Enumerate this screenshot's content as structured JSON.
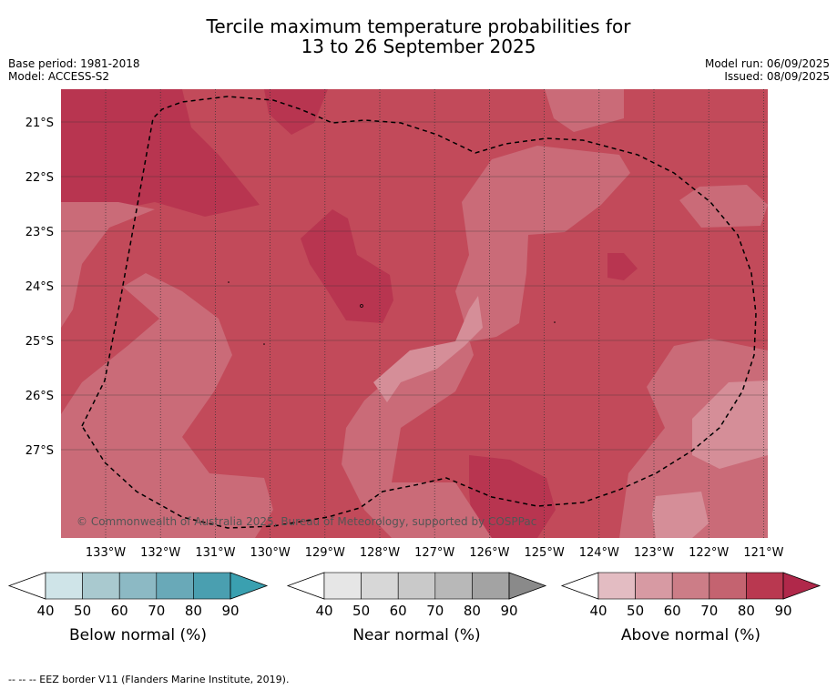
{
  "title": {
    "line1": "Tercile maximum temperature probabilities for",
    "line2": "13 to 26 September 2025"
  },
  "meta": {
    "base_period": "Base period: 1981-2018",
    "model": "Model: ACCESS-S2",
    "model_run": "Model run: 06/09/2025",
    "issued": "Issued: 08/09/2025"
  },
  "map": {
    "latitude_labels": [
      "21°S",
      "22°S",
      "23°S",
      "24°S",
      "25°S",
      "26°S",
      "27°S"
    ],
    "longitude_labels": [
      "133°W",
      "132°W",
      "131°W",
      "130°W",
      "129°W",
      "128°W",
      "127°W",
      "126°W",
      "125°W",
      "124°W",
      "123°W",
      "122°W",
      "121°W"
    ],
    "copyright": "© Commonwealth of Australia 2025, Bureau of Meteorology, supported by COSPPac"
  },
  "colorbars": [
    {
      "title": "Below normal (%)",
      "ticks": [
        "40",
        "50",
        "60",
        "70",
        "80",
        "90"
      ],
      "colors": [
        "#cfe4e8",
        "#a9c9cf",
        "#8cb9c4",
        "#69a9b8",
        "#4a9fb0",
        "#3aa0b0"
      ]
    },
    {
      "title": "Near normal (%)",
      "ticks": [
        "40",
        "50",
        "60",
        "70",
        "80",
        "90"
      ],
      "colors": [
        "#e6e6e6",
        "#d7d7d7",
        "#c9c9c9",
        "#b8b8b8",
        "#a3a3a3",
        "#8a8a8a"
      ]
    },
    {
      "title": "Above normal (%)",
      "ticks": [
        "40",
        "50",
        "60",
        "70",
        "80",
        "90"
      ],
      "colors": [
        "#e3bcc2",
        "#d79aa3",
        "#cc7d87",
        "#c46370",
        "#b93850",
        "#b0284a"
      ]
    }
  ],
  "footer": "--  --  -- EEZ border V11 (Flanders Marine Institute, 2019)."
}
